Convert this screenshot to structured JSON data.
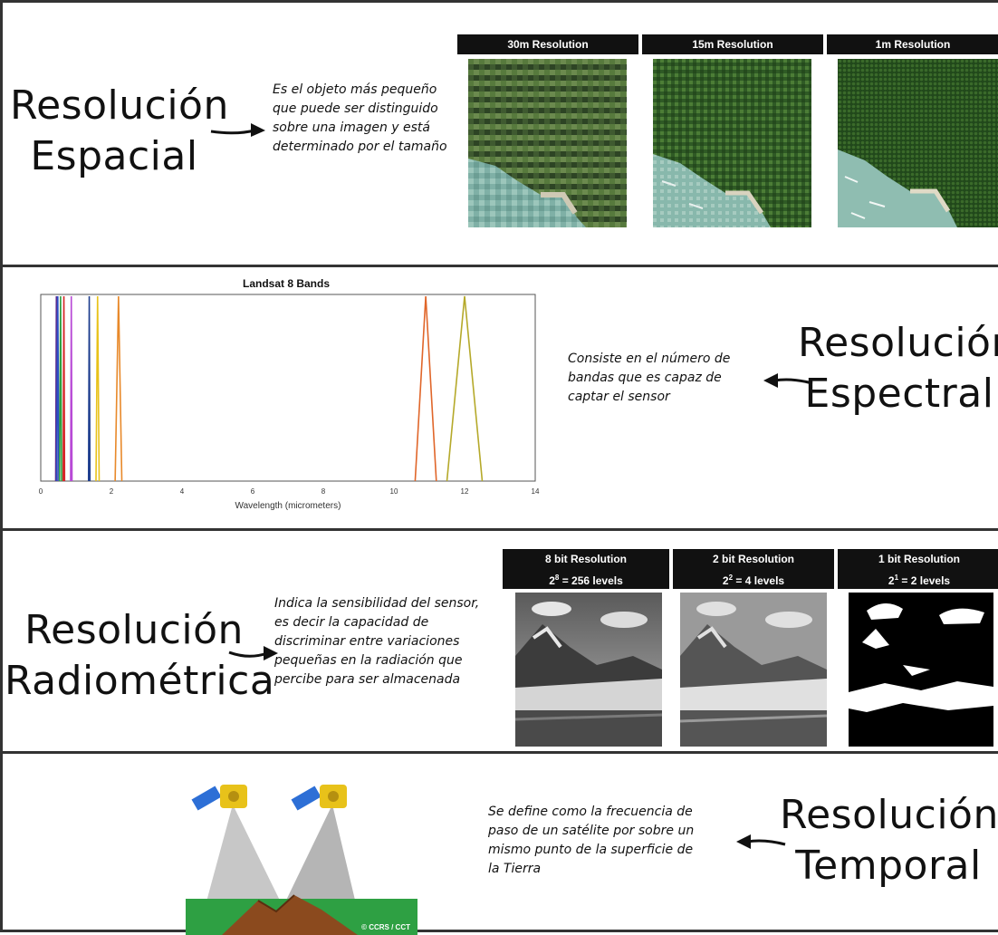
{
  "spatial": {
    "title_line1": "Resolución",
    "title_line2": "Espacial",
    "description_lines": [
      "Es el objeto más pequeño",
      "que puede ser distinguido",
      "sobre una imagen y está",
      "determinado por el tamaño"
    ],
    "image_labels": [
      "30m Resolution",
      "15m Resolution",
      "1m Resolution"
    ]
  },
  "spectral": {
    "title_line1": "Resolución",
    "title_line2": "Espectral",
    "description_lines": [
      "Consiste en el número de",
      "bandas que es capaz de",
      "captar el sensor"
    ]
  },
  "radiometric": {
    "title_line1": "Resolución",
    "title_line2": "Radiométrica",
    "description_lines": [
      "Indica la sensibilidad del sensor,",
      "es decir la capacidad de",
      "discriminar entre variaciones",
      "pequeñas en la radiación que",
      "percibe para ser almacenada"
    ],
    "image_labels": [
      {
        "line1": "8 bit Resolution",
        "base": "2",
        "exp": "8",
        "rest": " = 256 levels"
      },
      {
        "line1": "2 bit Resolution",
        "base": "2",
        "exp": "2",
        "rest": " = 4 levels"
      },
      {
        "line1": "1 bit Resolution",
        "base": "2",
        "exp": "1",
        "rest": " = 2 levels"
      }
    ]
  },
  "temporal": {
    "title_line1": "Resolución",
    "title_line2": "Temporal",
    "description_lines": [
      "Se define como la frecuencia de",
      "paso de un satélite por sobre un",
      "mismo punto de la superficie de",
      "la Tierra"
    ],
    "credit": "© CCRS / CCT"
  },
  "chart_data": {
    "type": "line",
    "title": "Landsat 8 Bands",
    "xlabel": "Wavelength (micrometers)",
    "ylabel": "",
    "xlim": [
      0,
      14
    ],
    "xticks": [
      0,
      2,
      4,
      6,
      8,
      10,
      12,
      14
    ],
    "grid": false,
    "series": [
      {
        "center": 0.443,
        "width": 0.02,
        "color": "#5b2c8f"
      },
      {
        "center": 0.482,
        "width": 0.06,
        "color": "#2b4fc4"
      },
      {
        "center": 0.561,
        "width": 0.06,
        "color": "#2e9e3e"
      },
      {
        "center": 0.655,
        "width": 0.04,
        "color": "#d62728"
      },
      {
        "center": 0.865,
        "width": 0.03,
        "color": "#b84ad6"
      },
      {
        "center": 1.373,
        "width": 0.02,
        "color": "#1f3f8f"
      },
      {
        "center": 1.609,
        "width": 0.09,
        "color": "#e8c21a"
      },
      {
        "center": 2.201,
        "width": 0.19,
        "color": "#e8892a"
      },
      {
        "center": 10.9,
        "width": 0.6,
        "color": "#e0662a"
      },
      {
        "center": 12.0,
        "width": 1.0,
        "color": "#b5a92a"
      }
    ]
  }
}
